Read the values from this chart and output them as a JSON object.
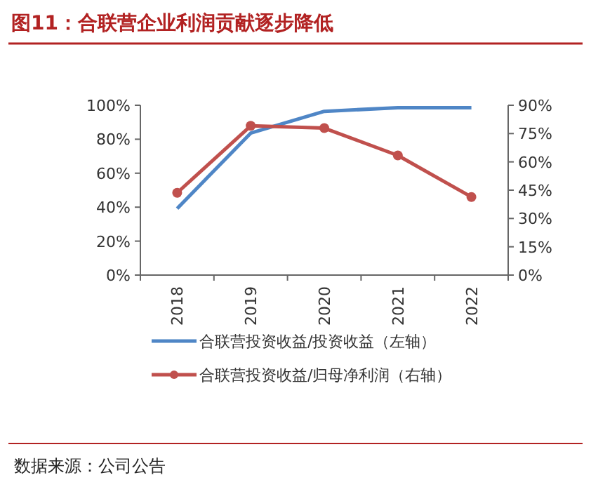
{
  "chart_data": {
    "type": "line",
    "title": "图11：合联营企业利润贡献逐步降低",
    "annotations": [
      "数据来源：公司公告"
    ],
    "categories": [
      "2018",
      "2019",
      "2020",
      "2021",
      "2022"
    ],
    "series": [
      {
        "name": "合联营投资收益/投资收益（左轴）",
        "color": "#4f86c6",
        "values": [
          39.2,
          83.6,
          96.4,
          98.6,
          98.6
        ],
        "marker": "none"
      },
      {
        "name": "合联营投资收益/归母净利润（右轴）",
        "color": "#c0504d",
        "values": [
          43.6,
          79.1,
          77.9,
          63.4,
          41.4
        ],
        "axis": "y2",
        "marker": "circle"
      }
    ],
    "ylim": [
      0,
      100
    ],
    "yticks": [
      {
        "value": 0,
        "label": "0%"
      },
      {
        "value": 20,
        "label": "20%"
      },
      {
        "value": 40,
        "label": "40%"
      },
      {
        "value": 60,
        "label": "60%"
      },
      {
        "value": 80,
        "label": "80%"
      },
      {
        "value": 100,
        "label": "100%"
      }
    ],
    "y2lim": [
      0,
      90
    ],
    "y2ticks": [
      {
        "value": 0,
        "label": "0%"
      },
      {
        "value": 15,
        "label": "15%"
      },
      {
        "value": 30,
        "label": "30%"
      },
      {
        "value": 45,
        "label": "45%"
      },
      {
        "value": 60,
        "label": "60%"
      },
      {
        "value": 75,
        "label": "75%"
      },
      {
        "value": 90,
        "label": "90%"
      }
    ],
    "legend": "bottom",
    "grid": false
  }
}
